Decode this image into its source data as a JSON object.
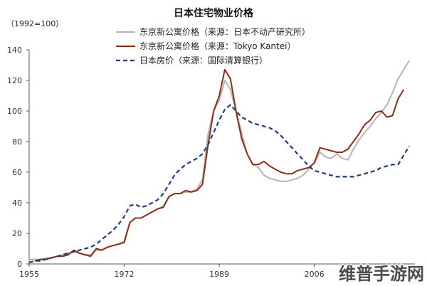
{
  "chart_data": {
    "type": "line",
    "title": "日本住宅物业价格",
    "unit_note": "（1992=100）",
    "xlabel": "",
    "ylabel": "",
    "xlim": [
      1955,
      2024
    ],
    "ylim": [
      0,
      140
    ],
    "x_ticks": [
      "1955",
      "1972",
      "1989",
      "2006"
    ],
    "y_ticks": [
      "0",
      "20",
      "40",
      "60",
      "80",
      "100",
      "120",
      "140"
    ],
    "grid": false,
    "legend_position": "top-center",
    "x": [
      1955,
      1956,
      1957,
      1958,
      1959,
      1960,
      1961,
      1962,
      1963,
      1964,
      1965,
      1966,
      1967,
      1968,
      1969,
      1970,
      1971,
      1972,
      1973,
      1974,
      1975,
      1976,
      1977,
      1978,
      1979,
      1980,
      1981,
      1982,
      1983,
      1984,
      1985,
      1986,
      1987,
      1988,
      1989,
      1990,
      1991,
      1992,
      1993,
      1994,
      1995,
      1996,
      1997,
      1998,
      1999,
      2000,
      2001,
      2002,
      2003,
      2004,
      2005,
      2006,
      2007,
      2008,
      2009,
      2010,
      2011,
      2012,
      2013,
      2014,
      2015,
      2016,
      2017,
      2018,
      2019,
      2020,
      2021,
      2022,
      2023
    ],
    "series": [
      {
        "name": "东京新公寓价格（来源：日本不动产研究所）",
        "color": "#b5b5b5",
        "style": "solid",
        "values": [
          3,
          3,
          3,
          4,
          4,
          5,
          6,
          7,
          8,
          7,
          6,
          6,
          9,
          9,
          11,
          12,
          13,
          15,
          27,
          30,
          30,
          32,
          34,
          36,
          38,
          44,
          46,
          46,
          47,
          47,
          49,
          55,
          85,
          100,
          107,
          120,
          114,
          100,
          86,
          72,
          65,
          63,
          58,
          56,
          55,
          54,
          54,
          55,
          56,
          58,
          62,
          66,
          73,
          70,
          69,
          72,
          69,
          68,
          75,
          81,
          86,
          90,
          95,
          99,
          104,
          112,
          121,
          127,
          133
        ]
      },
      {
        "name": "东京新公寓价格（来源：Tokyo Kantei）",
        "color": "#8c2d19",
        "style": "solid",
        "values": [
          null,
          2,
          3,
          3,
          4,
          5,
          5,
          6,
          9,
          7,
          6,
          5,
          10,
          9,
          11,
          12,
          13,
          14,
          27,
          30,
          30,
          32,
          34,
          36,
          37,
          44,
          46,
          46,
          48,
          47,
          48,
          52,
          78,
          100,
          110,
          127,
          121,
          100,
          82,
          72,
          65,
          65,
          67,
          64,
          62,
          60,
          59,
          59,
          61,
          62,
          63,
          66,
          76,
          75,
          74,
          73,
          73,
          75,
          80,
          85,
          91,
          94,
          99,
          100,
          96,
          97,
          108,
          114,
          null
        ]
      },
      {
        "name": "日本房价（来源：国际清算银行）",
        "color": "#203c78",
        "style": "dashed",
        "values": [
          1,
          2,
          2,
          3,
          4,
          5,
          6,
          7,
          8,
          9,
          10,
          11,
          13,
          16,
          19,
          22,
          26,
          31,
          38,
          39,
          37,
          38,
          40,
          42,
          46,
          52,
          58,
          62,
          65,
          67,
          69,
          72,
          78,
          86,
          94,
          101,
          104,
          100,
          96,
          94,
          92,
          91,
          90,
          89,
          87,
          84,
          80,
          76,
          72,
          68,
          64,
          61,
          60,
          59,
          58,
          57,
          57,
          57,
          57,
          58,
          59,
          60,
          61,
          63,
          64,
          65,
          65,
          71,
          77
        ]
      }
    ]
  },
  "watermark": "维普手游网"
}
